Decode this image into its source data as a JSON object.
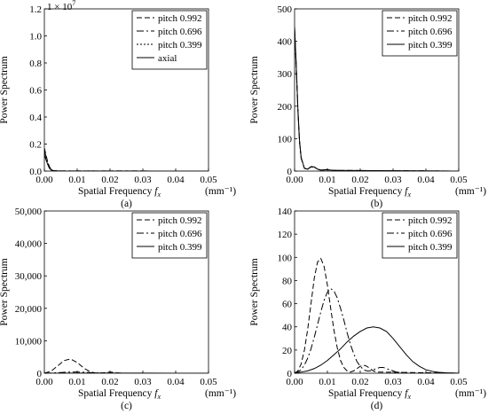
{
  "chart_data": [
    {
      "id": "a",
      "type": "line",
      "caption": "(a)",
      "xlabel": "Spatial Frequency",
      "xlabel_sym": "f",
      "xlabel_sub": "x",
      "xunit": "(mm⁻¹)",
      "ylabel": "Power Spectrum",
      "xlim": [
        0,
        0.05
      ],
      "ylim": [
        0,
        1.2
      ],
      "y_multiplier": "1 × 10",
      "y_multiplier_exp": "7",
      "xticks": [
        "0.00",
        "0.01",
        "0.02",
        "0.03",
        "0.04",
        "0.05"
      ],
      "yticks": [
        "0.0",
        "0.2",
        "0.4",
        "0.6",
        "0.8",
        "1.0",
        "1.2"
      ],
      "series": [
        {
          "name": "pitch 0.992",
          "dash": "dashed",
          "x": [
            0,
            0.0005,
            0.001,
            0.0015,
            0.002,
            0.0025,
            0.003,
            0.004,
            0.005,
            0.05
          ],
          "y": [
            0.17,
            0.12,
            0.07,
            0.035,
            0.015,
            0.006,
            0.003,
            0.002,
            0.001,
            0.0
          ]
        },
        {
          "name": "pitch 0.696",
          "dash": "dashdot",
          "x": [
            0,
            0.0005,
            0.001,
            0.0015,
            0.002,
            0.0025,
            0.003,
            0.004,
            0.005,
            0.05
          ],
          "y": [
            0.15,
            0.11,
            0.065,
            0.03,
            0.013,
            0.005,
            0.003,
            0.002,
            0.001,
            0.0
          ]
        },
        {
          "name": "pitch 0.399",
          "dash": "dotted",
          "x": [
            0,
            0.0005,
            0.001,
            0.0015,
            0.002,
            0.0025,
            0.003,
            0.004,
            0.005,
            0.05
          ],
          "y": [
            0.13,
            0.095,
            0.055,
            0.025,
            0.01,
            0.004,
            0.002,
            0.001,
            0.0,
            0.0
          ]
        },
        {
          "name": "axial",
          "dash": "solid",
          "x": [
            0,
            0.0005,
            0.001,
            0.0015,
            0.002,
            0.0025,
            0.003,
            0.004,
            0.005,
            0.05
          ],
          "y": [
            0.12,
            0.085,
            0.05,
            0.022,
            0.009,
            0.004,
            0.002,
            0.001,
            0.0,
            0.0
          ]
        }
      ]
    },
    {
      "id": "b",
      "type": "line",
      "caption": "(b)",
      "xlabel": "Spatial Frequency",
      "xlabel_sym": "f",
      "xlabel_sub": "x",
      "xunit": "(mm⁻¹)",
      "ylabel": "Power Spectrum",
      "xlim": [
        0,
        0.05
      ],
      "ylim": [
        0,
        500
      ],
      "xticks": [
        "0.00",
        "0.01",
        "0.02",
        "0.03",
        "0.04",
        "0.05"
      ],
      "yticks": [
        "0",
        "100",
        "200",
        "300",
        "400",
        "500"
      ],
      "series": [
        {
          "name": "pitch 0.992",
          "dash": "dashed",
          "x": [
            0,
            0.0005,
            0.001,
            0.0015,
            0.002,
            0.003,
            0.004,
            0.005,
            0.006,
            0.007,
            0.008,
            0.01,
            0.012,
            0.05
          ],
          "y": [
            435,
            320,
            190,
            90,
            40,
            8,
            6,
            13,
            12,
            6,
            3,
            5,
            2,
            0
          ]
        },
        {
          "name": "pitch 0.696",
          "dash": "dashdot",
          "x": [
            0,
            0.0005,
            0.001,
            0.0015,
            0.002,
            0.003,
            0.004,
            0.005,
            0.006,
            0.007,
            0.008,
            0.01,
            0.012,
            0.05
          ],
          "y": [
            440,
            325,
            192,
            92,
            41,
            8,
            6,
            13,
            12,
            6,
            3,
            4,
            2,
            0
          ]
        },
        {
          "name": "pitch 0.399",
          "dash": "solid",
          "x": [
            0,
            0.0005,
            0.001,
            0.0015,
            0.002,
            0.003,
            0.004,
            0.005,
            0.006,
            0.007,
            0.008,
            0.01,
            0.012,
            0.05
          ],
          "y": [
            445,
            330,
            195,
            95,
            42,
            9,
            6,
            14,
            13,
            6,
            3,
            4,
            2,
            0
          ]
        }
      ]
    },
    {
      "id": "c",
      "type": "line",
      "caption": "(c)",
      "xlabel": "Spatial Frequency",
      "xlabel_sym": "f",
      "xlabel_sub": "x",
      "xunit": "(mm⁻¹)",
      "ylabel": "Power Spectrum",
      "xlim": [
        0,
        0.05
      ],
      "ylim": [
        0,
        50000
      ],
      "xticks": [
        "0.00",
        "0.01",
        "0.02",
        "0.03",
        "0.04",
        "0.05"
      ],
      "yticks": [
        "0",
        "10,000",
        "20,000",
        "30,000",
        "40,000",
        "50,000"
      ],
      "series": [
        {
          "name": "pitch 0.992",
          "dash": "dashed",
          "x": [
            0,
            0.002,
            0.004,
            0.006,
            0.008,
            0.01,
            0.012,
            0.014,
            0.016,
            0.018,
            0.02,
            0.022,
            0.024,
            0.026,
            0.05
          ],
          "y": [
            0,
            600,
            2200,
            3900,
            4400,
            3300,
            1600,
            400,
            0,
            150,
            350,
            150,
            0,
            0,
            0
          ]
        },
        {
          "name": "pitch 0.696",
          "dash": "dashdot",
          "x": [
            0,
            0.004,
            0.008,
            0.012,
            0.016,
            0.02,
            0.024,
            0.05
          ],
          "y": [
            0,
            150,
            400,
            300,
            100,
            0,
            0,
            0
          ]
        },
        {
          "name": "pitch 0.399",
          "dash": "solid",
          "x": [
            0,
            0.01,
            0.02,
            0.03,
            0.04,
            0.05
          ],
          "y": [
            0,
            20,
            40,
            20,
            0,
            0
          ]
        }
      ]
    },
    {
      "id": "d",
      "type": "line",
      "caption": "(d)",
      "xlabel": "Spatial Frequency",
      "xlabel_sym": "f",
      "xlabel_sub": "x",
      "xunit": "(mm⁻¹)",
      "ylabel": "Power Spectrum",
      "xlim": [
        0,
        0.05
      ],
      "ylim": [
        0,
        140
      ],
      "xticks": [
        "0.00",
        "0.01",
        "0.02",
        "0.03",
        "0.04",
        "0.05"
      ],
      "yticks": [
        "0",
        "20",
        "40",
        "60",
        "80",
        "100",
        "120",
        "140"
      ],
      "series": [
        {
          "name": "pitch 0.992",
          "dash": "dashed",
          "x": [
            0,
            0.001,
            0.002,
            0.003,
            0.004,
            0.005,
            0.006,
            0.007,
            0.008,
            0.009,
            0.01,
            0.011,
            0.012,
            0.013,
            0.014,
            0.015,
            0.016,
            0.017,
            0.018,
            0.019,
            0.02,
            0.021,
            0.022,
            0.023,
            0.024,
            0.025,
            0.05
          ],
          "y": [
            0,
            2,
            8,
            20,
            38,
            60,
            82,
            96,
            99,
            92,
            76,
            56,
            37,
            22,
            11,
            5,
            2,
            1,
            2,
            4,
            6,
            7,
            6,
            4,
            2,
            1,
            0
          ]
        },
        {
          "name": "pitch 0.696",
          "dash": "dashdot",
          "x": [
            0,
            0.001,
            0.002,
            0.003,
            0.004,
            0.005,
            0.006,
            0.007,
            0.008,
            0.009,
            0.01,
            0.011,
            0.012,
            0.013,
            0.014,
            0.015,
            0.016,
            0.017,
            0.018,
            0.019,
            0.02,
            0.021,
            0.022,
            0.023,
            0.024,
            0.025,
            0.026,
            0.027,
            0.028,
            0.029,
            0.03,
            0.031,
            0.032,
            0.034,
            0.05
          ],
          "y": [
            0,
            1,
            3,
            7,
            13,
            21,
            31,
            42,
            53,
            63,
            70,
            73,
            71,
            65,
            56,
            46,
            35,
            25,
            17,
            10,
            6,
            3,
            2,
            2,
            3,
            4,
            5,
            5,
            4,
            3,
            2,
            1,
            1,
            0,
            0
          ]
        },
        {
          "name": "pitch 0.399",
          "dash": "solid",
          "x": [
            0,
            0.002,
            0.004,
            0.006,
            0.008,
            0.01,
            0.012,
            0.014,
            0.016,
            0.018,
            0.02,
            0.022,
            0.024,
            0.026,
            0.028,
            0.03,
            0.032,
            0.034,
            0.036,
            0.038,
            0.04,
            0.042,
            0.044,
            0.046,
            0.05
          ],
          "y": [
            0,
            1,
            2,
            4,
            7,
            11,
            16,
            21,
            27,
            32,
            36,
            39,
            40,
            39,
            36,
            30,
            23,
            16,
            10,
            6,
            3,
            1.5,
            0.8,
            0.4,
            0
          ]
        }
      ]
    }
  ]
}
